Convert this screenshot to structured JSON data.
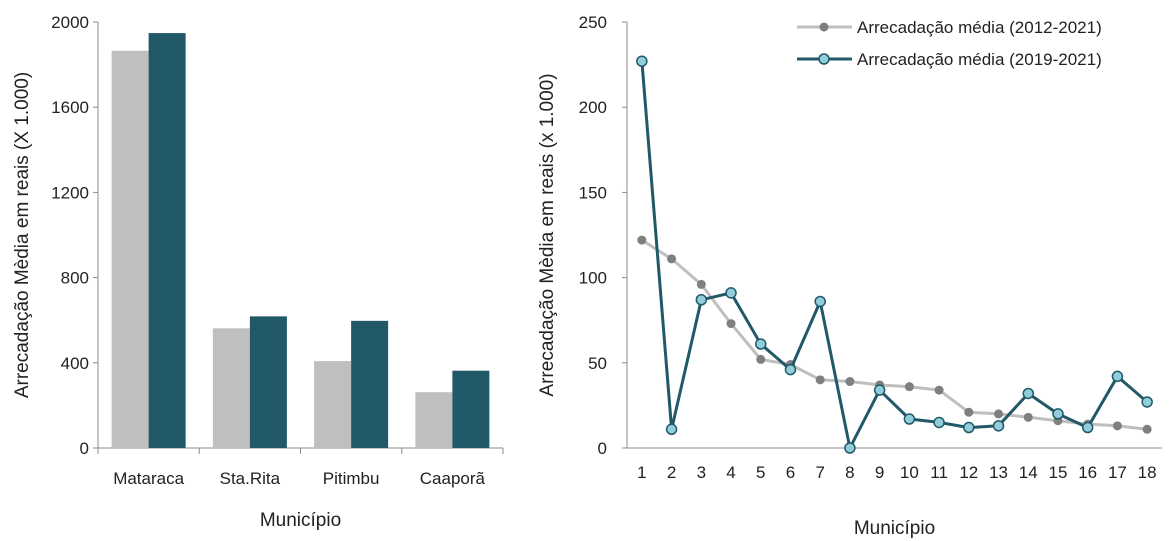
{
  "chart_data": [
    {
      "type": "bar",
      "categories": [
        "Mataraca",
        "Sta.Rita",
        "Pitimbu",
        "Caaporã"
      ],
      "series": [
        {
          "values": [
            1865,
            562,
            408,
            262
          ],
          "color": "#bfbfbf"
        },
        {
          "values": [
            1948,
            618,
            597,
            363
          ],
          "color": "#215968"
        }
      ],
      "xlabel": "Município",
      "ylabel": "Arrecadação Mèdia em reais  (X 1.000)",
      "ylim": [
        0,
        2000
      ],
      "yticks": [
        "0",
        "400",
        "800",
        "1200",
        "1600",
        "2000"
      ],
      "grid": false
    },
    {
      "type": "line",
      "x": [
        "1",
        "2",
        "3",
        "4",
        "5",
        "6",
        "7",
        "8",
        "9",
        "10",
        "11",
        "12",
        "13",
        "14",
        "15",
        "16",
        "17",
        "18"
      ],
      "series": [
        {
          "name": "Arrecadação média (2012-2021)",
          "values": [
            122,
            111,
            96,
            73,
            52,
            49,
            40,
            39,
            37,
            36,
            34,
            21,
            20,
            18,
            16,
            14,
            13,
            11
          ],
          "color": "#bfbfbf",
          "marker_color": "#7f7f7f"
        },
        {
          "name": "Arrecadação média (2019-2021)",
          "values": [
            227,
            11,
            87,
            91,
            61,
            46,
            86,
            0,
            34,
            17,
            15,
            12,
            13,
            32,
            20,
            12,
            42,
            27
          ],
          "color": "#215968",
          "marker_color": "#92cddc"
        }
      ],
      "xlabel": "Município",
      "ylabel": "Arrecadação Mèdia em reais  (x 1.000)",
      "ylim": [
        0,
        250
      ],
      "yticks": [
        "0",
        "50",
        "100",
        "150",
        "200",
        "250"
      ],
      "legend": "top-right",
      "grid": false
    }
  ]
}
